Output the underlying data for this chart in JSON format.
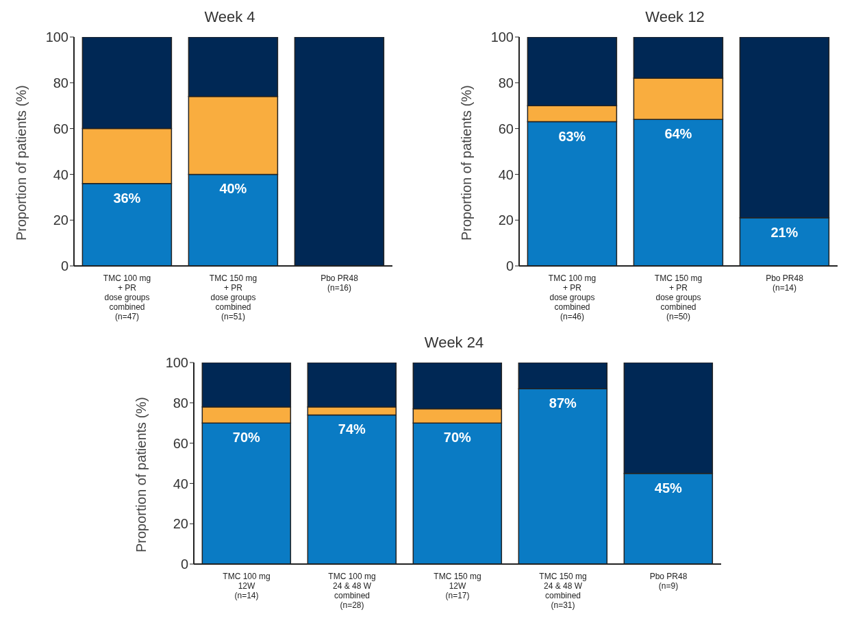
{
  "chart_data": [
    {
      "type": "bar",
      "title": "Week 4",
      "ylabel": "Proportion of patients (%)",
      "stacked": true,
      "categories": [
        "TMC 100 mg\n+ PR\ndose groups\ncombined\n(n=47)",
        "TMC 150 mg\n+ PR\ndose groups\ncombined\n(n=51)",
        "Pbo PR48\n(n=16)"
      ],
      "ylim": [
        0,
        100
      ],
      "yticks": [
        0,
        20,
        40,
        60,
        80,
        100
      ],
      "grid": false,
      "legend": false,
      "series": [
        {
          "color": "#0a7bc4",
          "values": [
            36,
            40,
            0
          ],
          "value_labels": [
            "36%",
            "40%",
            null
          ]
        },
        {
          "color": "#f9ad3f",
          "values": [
            24,
            34,
            0
          ]
        },
        {
          "color": "#002855",
          "values": [
            40,
            26,
            100
          ]
        }
      ]
    },
    {
      "type": "bar",
      "title": "Week 12",
      "ylabel": "Proportion of patients (%)",
      "stacked": true,
      "categories": [
        "TMC 100 mg\n+ PR\ndose groups\ncombined\n(n=46)",
        "TMC 150 mg\n+ PR\ndose groups\ncombined\n(n=50)",
        "Pbo PR48\n(n=14)"
      ],
      "ylim": [
        0,
        100
      ],
      "yticks": [
        0,
        20,
        40,
        60,
        80,
        100
      ],
      "grid": false,
      "legend": false,
      "series": [
        {
          "color": "#0a7bc4",
          "values": [
            63,
            64,
            21
          ],
          "value_labels": [
            "63%",
            "64%",
            "21%"
          ]
        },
        {
          "color": "#f9ad3f",
          "values": [
            7,
            18,
            0
          ]
        },
        {
          "color": "#002855",
          "values": [
            30,
            18,
            79
          ]
        }
      ]
    },
    {
      "type": "bar",
      "title": "Week 24",
      "ylabel": "Proportion of patients (%)",
      "stacked": true,
      "categories": [
        "TMC 100 mg\n12W\n(n=14)",
        "TMC 100 mg\n24 & 48 W\ncombined\n(n=28)",
        "TMC 150 mg\n12W\n(n=17)",
        "TMC 150 mg\n24 & 48 W\ncombined\n(n=31)",
        "Pbo PR48\n(n=9)"
      ],
      "ylim": [
        0,
        100
      ],
      "yticks": [
        0,
        20,
        40,
        60,
        80,
        100
      ],
      "grid": false,
      "legend": false,
      "series": [
        {
          "color": "#0a7bc4",
          "values": [
            70,
            74,
            70,
            87,
            45
          ],
          "value_labels": [
            "70%",
            "74%",
            "70%",
            "87%",
            "45%"
          ]
        },
        {
          "color": "#f9ad3f",
          "values": [
            8,
            4,
            7,
            0,
            0
          ]
        },
        {
          "color": "#002855",
          "values": [
            22,
            22,
            23,
            13,
            55
          ]
        }
      ]
    }
  ]
}
